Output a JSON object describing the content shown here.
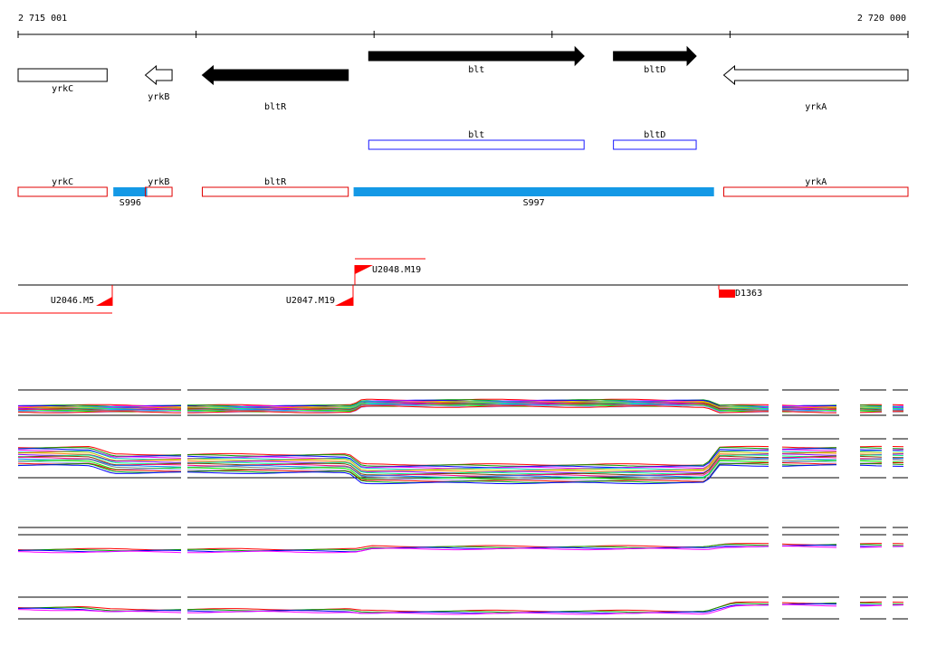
{
  "ruler": {
    "start_label": "2 715 001",
    "end_label": "2 720 000"
  },
  "genes": [
    {
      "name": "yrkC",
      "strand": "+",
      "style": "outline",
      "start": 0,
      "end": 0.1
    },
    {
      "name": "yrkB",
      "strand": "-",
      "style": "outline",
      "start": 0.143,
      "end": 0.173
    },
    {
      "name": "bltR",
      "strand": "-",
      "style": "filled",
      "start": 0.207,
      "end": 0.371
    },
    {
      "name": "blt",
      "strand": "+",
      "style": "filled",
      "start": 0.394,
      "end": 0.636
    },
    {
      "name": "bltD",
      "strand": "+",
      "style": "filled",
      "start": 0.669,
      "end": 0.762
    },
    {
      "name": "yrkA",
      "strand": "-",
      "style": "outline",
      "start": 0.793,
      "end": 1.0
    }
  ],
  "blue_boxes": [
    {
      "name": "blt",
      "start": 0.394,
      "end": 0.636
    },
    {
      "name": "bltD",
      "start": 0.669,
      "end": 0.762
    }
  ],
  "red_boxes": [
    {
      "name": "yrkC",
      "start": 0,
      "end": 0.1
    },
    {
      "name": "yrkB",
      "start": 0.143,
      "end": 0.173
    },
    {
      "name": "bltR",
      "start": 0.207,
      "end": 0.371
    },
    {
      "name": "yrkA",
      "start": 0.793,
      "end": 1.0
    }
  ],
  "segments": [
    {
      "name": "S996",
      "start": 0.107,
      "end": 0.145
    },
    {
      "name": "S997",
      "start": 0.377,
      "end": 0.782
    }
  ],
  "markers": [
    {
      "name": "U2046.M5",
      "pos": 0.105
    },
    {
      "name": "U2047.M19",
      "pos": 0.378
    },
    {
      "name": "U2048.M19",
      "pos": 0.381
    },
    {
      "name": "D1363",
      "pos": 0.788
    }
  ],
  "colors": {
    "gene_filled": "#000000",
    "blue_box": "#1a1aff",
    "red_box": "#e00000",
    "segment": "#1499e6",
    "marker": "#ff0000"
  }
}
